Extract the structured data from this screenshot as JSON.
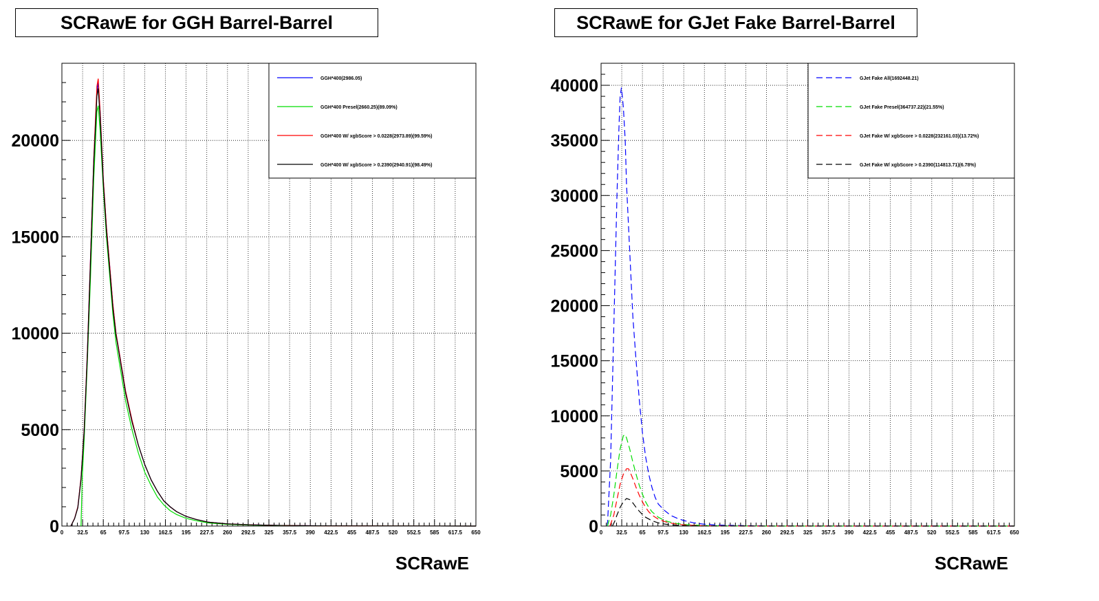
{
  "chart_data": [
    {
      "type": "line",
      "title": "SCRawE for GGH Barrel-Barrel",
      "xlabel": "SCRawE",
      "ylabel": "",
      "xlim": [
        0,
        650
      ],
      "ylim": [
        0,
        24000
      ],
      "x_ticks": [
        "0",
        "32.5",
        "65",
        "97.5",
        "130",
        "162.5",
        "195",
        "227.5",
        "260",
        "292.5",
        "325",
        "357.5",
        "390",
        "422.5",
        "455",
        "487.5",
        "520",
        "552.5",
        "585",
        "617.5",
        "650"
      ],
      "y_ticks": [
        "0",
        "5000",
        "10000",
        "15000",
        "20000"
      ],
      "y_tick_values": [
        0,
        5000,
        10000,
        15000,
        20000
      ],
      "grid": true,
      "legend_position": "top-right",
      "series": [
        {
          "name": "GGH*400(2986.05)",
          "color": "#0000ff",
          "dash": "solid",
          "x": [
            14,
            20,
            25,
            30,
            35,
            40,
            45,
            50,
            55,
            57,
            60,
            65,
            70,
            75,
            80,
            85,
            90,
            95,
            100,
            110,
            120,
            130,
            140,
            150,
            160,
            170,
            180,
            195,
            210,
            230,
            260,
            300,
            350,
            400,
            500,
            650
          ],
          "y": [
            0,
            400,
            1000,
            2500,
            5000,
            9000,
            14000,
            19000,
            22500,
            23000,
            21500,
            18000,
            15500,
            13500,
            11500,
            10000,
            9000,
            8000,
            7000,
            5500,
            4200,
            3200,
            2400,
            1800,
            1300,
            1000,
            750,
            500,
            350,
            200,
            110,
            60,
            30,
            15,
            5,
            0
          ]
        },
        {
          "name": "GGH*400 Presel(2660.25)(89.09%)",
          "color": "#00dd00",
          "dash": "solid",
          "x": [
            30,
            32,
            35,
            40,
            45,
            50,
            55,
            57,
            60,
            65,
            70,
            75,
            80,
            85,
            90,
            95,
            100,
            110,
            120,
            130,
            140,
            150,
            160,
            170,
            180,
            195,
            210,
            230,
            260,
            300,
            350,
            400,
            500,
            650
          ],
          "y": [
            0,
            2500,
            4500,
            8500,
            13000,
            18000,
            21500,
            21800,
            20500,
            17500,
            15000,
            13000,
            11000,
            9500,
            8500,
            7500,
            6500,
            5000,
            3800,
            2800,
            2100,
            1500,
            1100,
            800,
            600,
            400,
            280,
            160,
            90,
            50,
            25,
            12,
            4,
            0
          ]
        },
        {
          "name": "GGH*400 W/ xgbScore > 0.0228(2973.89)(99.59%)",
          "color": "#ff0000",
          "dash": "solid",
          "x": [
            14,
            20,
            25,
            30,
            35,
            40,
            45,
            50,
            55,
            57,
            60,
            65,
            70,
            75,
            80,
            85,
            90,
            95,
            100,
            110,
            120,
            130,
            140,
            150,
            160,
            170,
            180,
            195,
            210,
            230,
            260,
            300,
            350,
            400,
            500,
            650
          ],
          "y": [
            0,
            400,
            1000,
            2500,
            5000,
            9000,
            14000,
            19000,
            22800,
            23200,
            21500,
            18000,
            15500,
            13500,
            11500,
            10000,
            9000,
            8000,
            7000,
            5500,
            4200,
            3200,
            2400,
            1800,
            1300,
            1000,
            750,
            500,
            350,
            200,
            110,
            60,
            30,
            15,
            5,
            0
          ]
        },
        {
          "name": "GGH*400 W/ xgbScore > 0.2390(2940.91)(98.49%)",
          "color": "#000000",
          "dash": "solid",
          "x": [
            14,
            20,
            25,
            30,
            35,
            40,
            45,
            50,
            55,
            57,
            60,
            65,
            70,
            75,
            80,
            85,
            90,
            95,
            100,
            110,
            120,
            130,
            140,
            150,
            160,
            170,
            180,
            195,
            210,
            230,
            260,
            300,
            350,
            400,
            500,
            650
          ],
          "y": [
            0,
            380,
            950,
            2400,
            4900,
            8800,
            13800,
            18800,
            22300,
            22700,
            21200,
            17800,
            15300,
            13300,
            11300,
            9900,
            8900,
            7900,
            6900,
            5400,
            4200,
            3200,
            2400,
            1800,
            1300,
            1000,
            750,
            500,
            350,
            200,
            110,
            60,
            30,
            15,
            5,
            0
          ]
        }
      ]
    },
    {
      "type": "line",
      "title": "SCRawE for GJet Fake Barrel-Barrel",
      "xlabel": "SCRawE",
      "ylabel": "",
      "xlim": [
        0,
        650
      ],
      "ylim": [
        0,
        42000
      ],
      "x_ticks": [
        "0",
        "32.5",
        "65",
        "97.5",
        "130",
        "162.5",
        "195",
        "227.5",
        "260",
        "292.5",
        "325",
        "357.5",
        "390",
        "422.5",
        "455",
        "487.5",
        "520",
        "552.5",
        "585",
        "617.5",
        "650"
      ],
      "y_ticks": [
        "0",
        "5000",
        "10000",
        "15000",
        "20000",
        "25000",
        "30000",
        "35000",
        "40000"
      ],
      "y_tick_values": [
        0,
        5000,
        10000,
        15000,
        20000,
        25000,
        30000,
        35000,
        40000
      ],
      "grid": true,
      "legend_position": "top-right",
      "series": [
        {
          "name": "GJet Fake All(1692448.21)",
          "color": "#0000ff",
          "dash": "dashed",
          "x": [
            10,
            15,
            20,
            25,
            28,
            30,
            32,
            35,
            38,
            40,
            45,
            50,
            55,
            60,
            65,
            70,
            75,
            80,
            85,
            90,
            100,
            110,
            120,
            130,
            145,
            160,
            180,
            200,
            230,
            260,
            300,
            350,
            650
          ],
          "y": [
            0,
            6000,
            18000,
            30000,
            36000,
            39000,
            39800,
            38000,
            35000,
            31000,
            25000,
            19000,
            15000,
            11500,
            8500,
            6300,
            4700,
            3500,
            2600,
            2000,
            1400,
            950,
            700,
            500,
            300,
            180,
            100,
            60,
            30,
            15,
            8,
            3,
            0
          ]
        },
        {
          "name": "GJet Fake Presel(364737.22)(21.55%)",
          "color": "#00dd00",
          "dash": "dashed",
          "x": [
            10,
            15,
            20,
            25,
            30,
            35,
            38,
            40,
            45,
            50,
            55,
            60,
            65,
            70,
            75,
            80,
            90,
            100,
            110,
            120,
            130,
            145,
            160,
            180,
            200,
            230,
            260,
            650
          ],
          "y": [
            0,
            1000,
            2800,
            5000,
            7000,
            8200,
            8300,
            8000,
            7000,
            5800,
            4700,
            3700,
            2900,
            2200,
            1700,
            1300,
            800,
            500,
            330,
            220,
            150,
            90,
            50,
            25,
            12,
            5,
            2,
            0
          ]
        },
        {
          "name": "GJet Fake W/ xgbScore > 0.0228(232161.03)(13.72%)",
          "color": "#ff0000",
          "dash": "dashed",
          "x": [
            14,
            20,
            25,
            30,
            35,
            40,
            43,
            45,
            50,
            55,
            60,
            65,
            70,
            75,
            80,
            90,
            100,
            110,
            120,
            130,
            145,
            160,
            180,
            200,
            230,
            650
          ],
          "y": [
            0,
            1000,
            2400,
            3800,
            4700,
            5200,
            5200,
            5000,
            4300,
            3500,
            2800,
            2200,
            1700,
            1300,
            1000,
            620,
            400,
            260,
            170,
            110,
            60,
            30,
            15,
            7,
            3,
            0
          ]
        },
        {
          "name": "GJet Fake W/ xgbScore > 0.2390(114813.71)(6.78%)",
          "color": "#000000",
          "dash": "dashed",
          "x": [
            18,
            22,
            25,
            30,
            35,
            40,
            45,
            50,
            55,
            60,
            65,
            70,
            80,
            90,
            100,
            110,
            120,
            130,
            145,
            160,
            180,
            650
          ],
          "y": [
            0,
            500,
            1000,
            1700,
            2200,
            2500,
            2400,
            2100,
            1700,
            1350,
            1050,
            800,
            480,
            290,
            180,
            110,
            70,
            45,
            25,
            12,
            5,
            0
          ]
        }
      ]
    }
  ]
}
